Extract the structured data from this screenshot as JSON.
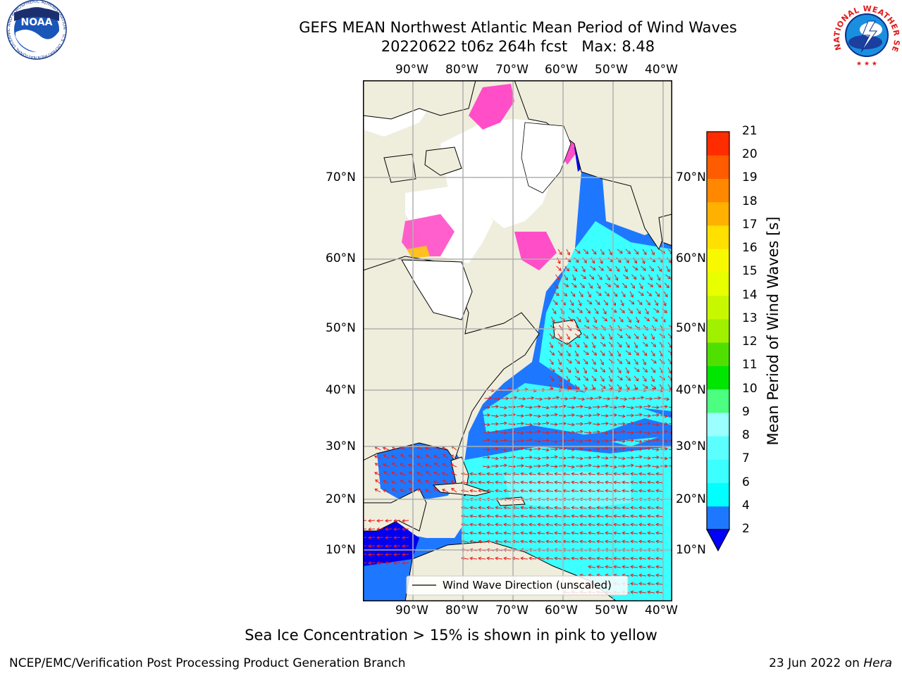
{
  "header": {
    "title_line1": "GEFS MEAN Northwest Atlantic Mean Period of Wind Waves",
    "title_line2": "20220622 t06z 264h fcst   Max: 8.48"
  },
  "map": {
    "lon_ticks": [
      "90°W",
      "80°W",
      "70°W",
      "60°W",
      "50°W",
      "40°W"
    ],
    "lat_ticks": [
      "70°N",
      "60°N",
      "50°N",
      "40°N",
      "30°N",
      "20°N",
      "10°N"
    ],
    "legend_label": "Wind Wave Direction (unscaled)",
    "colors": {
      "land": "#efeddc",
      "ocean_blue": "#1e78ff",
      "deep_blue": "#0000f0",
      "cyan": "#3cffff",
      "light_cyan": "#7fffff",
      "ice_pink": "#ff4ec8",
      "ice_yellow": "#ffc020",
      "arrow": "#ee1a1a",
      "grid": "#b0b0b0"
    }
  },
  "colorbar": {
    "label": "Mean Period of Wind Waves [s]",
    "ticks": [
      "2",
      "4",
      "6",
      "7",
      "8",
      "9",
      "10",
      "11",
      "12",
      "13",
      "14",
      "15",
      "16",
      "17",
      "18",
      "19",
      "20",
      "21"
    ],
    "colors": [
      "#1e78ff",
      "#00ffff",
      "#3cffff",
      "#5cffff",
      "#9bffff",
      "#4cff80",
      "#00e600",
      "#50e000",
      "#a0f000",
      "#c8f800",
      "#e8ff00",
      "#f8f800",
      "#ffe000",
      "#ffb000",
      "#ff8800",
      "#ff5c00",
      "#ff2c00",
      "#ff0000"
    ],
    "extend_color": "#0000ff"
  },
  "footer": {
    "note": "Sea Ice Concentration > 15% is shown in pink to yellow",
    "credit_left": "NCEP/EMC/Verification Post Processing Product Generation Branch",
    "date": "23 Jun 2022 on ",
    "machine": "Hera"
  },
  "logos": {
    "noaa_text": "NOAA",
    "noaa_ring": "NATIONAL OCEANIC AND ATMOSPHERIC ADMINISTRATION · U.S. DEPARTMENT OF COMMERCE ·",
    "nws_ring": "NATIONAL WEATHER SERVICE"
  }
}
